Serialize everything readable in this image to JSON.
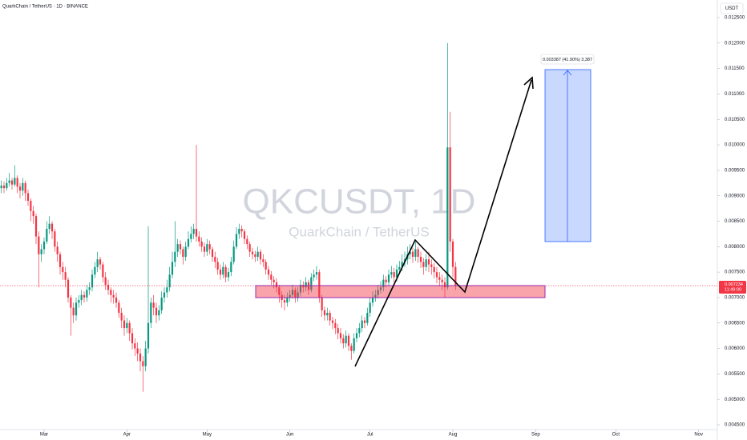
{
  "header": {
    "symbol_title": "QuarkChain / TetherUS · 1D · BINANCE"
  },
  "chart_data": {
    "type": "candlestick",
    "watermark": "QKCUSDT, 1D",
    "watermark_subtitle": "QuarkChain / TetherUS",
    "currency": "USDT",
    "measure_label": "0.003387 (41.90%) 3,387",
    "last_price": 0.007234,
    "countdown": "11:49:00",
    "up_color": "#089981",
    "down_color": "#f23645",
    "grid": false,
    "xlim": [
      -0.5,
      268
    ],
    "xticks": [
      {
        "value": 16,
        "label": "Mar"
      },
      {
        "value": 47,
        "label": "Apr"
      },
      {
        "value": 77,
        "label": "May"
      },
      {
        "value": 108,
        "label": "Jun"
      },
      {
        "value": 138,
        "label": "Jul"
      },
      {
        "value": 169,
        "label": "Aug"
      },
      {
        "value": 200,
        "label": "Sep"
      },
      {
        "value": 230,
        "label": "Oct"
      },
      {
        "value": 261,
        "label": "Nov"
      }
    ],
    "ylim": [
      0.0045,
      0.0125
    ],
    "yticks": [
      {
        "value": 0.0045,
        "label": "0.004500"
      },
      {
        "value": 0.005,
        "label": "0.005000"
      },
      {
        "value": 0.0055,
        "label": "0.005500"
      },
      {
        "value": 0.006,
        "label": "0.006000"
      },
      {
        "value": 0.0065,
        "label": "0.006500"
      },
      {
        "value": 0.007,
        "label": "0.007000"
      },
      {
        "value": 0.0075,
        "label": "0.007500"
      },
      {
        "value": 0.008,
        "label": "0.008000"
      },
      {
        "value": 0.0085,
        "label": "0.008500"
      },
      {
        "value": 0.009,
        "label": "0.009000"
      },
      {
        "value": 0.0095,
        "label": "0.009500"
      },
      {
        "value": 0.01,
        "label": "0.010000"
      },
      {
        "value": 0.0105,
        "label": "0.010500"
      },
      {
        "value": 0.011,
        "label": "0.011000"
      },
      {
        "value": 0.0115,
        "label": "0.011500"
      },
      {
        "value": 0.012,
        "label": "0.012000"
      },
      {
        "value": 0.0125,
        "label": "0.012500"
      }
    ],
    "candles": [
      [
        0.00915,
        0.0093,
        0.00905,
        0.0092
      ],
      [
        0.0092,
        0.00928,
        0.00905,
        0.00915
      ],
      [
        0.00915,
        0.00935,
        0.0091,
        0.00925
      ],
      [
        0.00925,
        0.00945,
        0.00918,
        0.0093
      ],
      [
        0.0093,
        0.00935,
        0.00912,
        0.00922
      ],
      [
        0.00922,
        0.0096,
        0.00918,
        0.00935
      ],
      [
        0.00935,
        0.0094,
        0.00905,
        0.00918
      ],
      [
        0.00918,
        0.00925,
        0.00895,
        0.0091
      ],
      [
        0.0091,
        0.00935,
        0.009,
        0.00925
      ],
      [
        0.00925,
        0.0093,
        0.0089,
        0.00905
      ],
      [
        0.00905,
        0.00912,
        0.0088,
        0.0089
      ],
      [
        0.0089,
        0.00895,
        0.0085,
        0.0087
      ],
      [
        0.0087,
        0.0088,
        0.00845,
        0.0086
      ],
      [
        0.0086,
        0.00865,
        0.00805,
        0.0082
      ],
      [
        0.0082,
        0.0083,
        0.0072,
        0.00785
      ],
      [
        0.00785,
        0.00805,
        0.0077,
        0.00795
      ],
      [
        0.00795,
        0.00818,
        0.00785,
        0.0081
      ],
      [
        0.0081,
        0.0085,
        0.00805,
        0.00835
      ],
      [
        0.00835,
        0.0086,
        0.00825,
        0.00845
      ],
      [
        0.00845,
        0.0085,
        0.00815,
        0.0083
      ],
      [
        0.0083,
        0.00835,
        0.0079,
        0.008
      ],
      [
        0.008,
        0.0081,
        0.0077,
        0.00785
      ],
      [
        0.00785,
        0.0079,
        0.00745,
        0.0076
      ],
      [
        0.0076,
        0.0077,
        0.00735,
        0.0075
      ],
      [
        0.0075,
        0.0076,
        0.0072,
        0.00735
      ],
      [
        0.00735,
        0.0074,
        0.0069,
        0.007
      ],
      [
        0.007,
        0.00705,
        0.00625,
        0.0068
      ],
      [
        0.0068,
        0.0069,
        0.0065,
        0.00665
      ],
      [
        0.00665,
        0.007,
        0.00655,
        0.0069
      ],
      [
        0.0069,
        0.00705,
        0.0068,
        0.00695
      ],
      [
        0.00695,
        0.00715,
        0.00685,
        0.00705
      ],
      [
        0.00705,
        0.00712,
        0.0069,
        0.007
      ],
      [
        0.007,
        0.00725,
        0.00692,
        0.00715
      ],
      [
        0.00715,
        0.0073,
        0.00705,
        0.0072
      ],
      [
        0.0072,
        0.00755,
        0.00712,
        0.00745
      ],
      [
        0.00745,
        0.0077,
        0.00738,
        0.0076
      ],
      [
        0.0076,
        0.0079,
        0.0075,
        0.00775
      ],
      [
        0.00775,
        0.0078,
        0.00755,
        0.00765
      ],
      [
        0.00765,
        0.0077,
        0.0073,
        0.0074
      ],
      [
        0.0074,
        0.0075,
        0.00715,
        0.00725
      ],
      [
        0.00725,
        0.00735,
        0.00705,
        0.00715
      ],
      [
        0.00715,
        0.0072,
        0.0069,
        0.00705
      ],
      [
        0.00705,
        0.00715,
        0.00688,
        0.007
      ],
      [
        0.007,
        0.0071,
        0.0068,
        0.0069
      ],
      [
        0.0069,
        0.00695,
        0.0066,
        0.0067
      ],
      [
        0.0067,
        0.0068,
        0.0064,
        0.00655
      ],
      [
        0.00655,
        0.00665,
        0.00625,
        0.0064
      ],
      [
        0.0064,
        0.0066,
        0.0063,
        0.0065
      ],
      [
        0.0065,
        0.00655,
        0.00615,
        0.0063
      ],
      [
        0.0063,
        0.0064,
        0.00598,
        0.0061
      ],
      [
        0.0061,
        0.0062,
        0.00585,
        0.006
      ],
      [
        0.006,
        0.00612,
        0.00575,
        0.0059
      ],
      [
        0.0059,
        0.006,
        0.00555,
        0.00575
      ],
      [
        0.00575,
        0.00585,
        0.00515,
        0.00565
      ],
      [
        0.00565,
        0.00615,
        0.00555,
        0.006
      ],
      [
        0.006,
        0.0084,
        0.0059,
        0.0065
      ],
      [
        0.0065,
        0.007,
        0.0064,
        0.0069
      ],
      [
        0.0069,
        0.00705,
        0.00665,
        0.0068
      ],
      [
        0.0068,
        0.0069,
        0.0065,
        0.00665
      ],
      [
        0.00665,
        0.00685,
        0.00655,
        0.00675
      ],
      [
        0.00675,
        0.00712,
        0.00668,
        0.007
      ],
      [
        0.007,
        0.0072,
        0.0069,
        0.0071
      ],
      [
        0.0071,
        0.00735,
        0.007,
        0.0072
      ],
      [
        0.0072,
        0.0076,
        0.00712,
        0.00745
      ],
      [
        0.00745,
        0.0079,
        0.00738,
        0.0077
      ],
      [
        0.0077,
        0.0085,
        0.0076,
        0.0079
      ],
      [
        0.0079,
        0.00815,
        0.0078,
        0.00805
      ],
      [
        0.00805,
        0.00812,
        0.00785,
        0.00795
      ],
      [
        0.00795,
        0.008,
        0.00765,
        0.0078
      ],
      [
        0.0078,
        0.0081,
        0.00772,
        0.008
      ],
      [
        0.008,
        0.0083,
        0.00795,
        0.00815
      ],
      [
        0.00815,
        0.0084,
        0.00808,
        0.00825
      ],
      [
        0.00825,
        0.00845,
        0.00815,
        0.00835
      ],
      [
        0.00835,
        0.01,
        0.0081,
        0.0082
      ],
      [
        0.0082,
        0.0083,
        0.008,
        0.0081
      ],
      [
        0.0081,
        0.00818,
        0.0079,
        0.008
      ],
      [
        0.008,
        0.00808,
        0.0078,
        0.0079
      ],
      [
        0.0079,
        0.00815,
        0.00782,
        0.00805
      ],
      [
        0.00805,
        0.00812,
        0.00785,
        0.00795
      ],
      [
        0.00795,
        0.008,
        0.0077,
        0.0078
      ],
      [
        0.0078,
        0.0079,
        0.00758,
        0.0077
      ],
      [
        0.0077,
        0.00778,
        0.00745,
        0.00755
      ],
      [
        0.00755,
        0.00765,
        0.00735,
        0.00745
      ],
      [
        0.00745,
        0.0077,
        0.00738,
        0.0076
      ],
      [
        0.0076,
        0.00765,
        0.0073,
        0.0074
      ],
      [
        0.0074,
        0.00758,
        0.00732,
        0.0075
      ],
      [
        0.0075,
        0.0078,
        0.00742,
        0.0077
      ],
      [
        0.0077,
        0.00812,
        0.00765,
        0.008
      ],
      [
        0.008,
        0.00838,
        0.00795,
        0.00825
      ],
      [
        0.00825,
        0.00845,
        0.00815,
        0.00835
      ],
      [
        0.00835,
        0.00842,
        0.00818,
        0.0083
      ],
      [
        0.0083,
        0.00835,
        0.00805,
        0.00815
      ],
      [
        0.00815,
        0.00822,
        0.00795,
        0.00805
      ],
      [
        0.00805,
        0.0081,
        0.0078,
        0.0079
      ],
      [
        0.0079,
        0.00798,
        0.00775,
        0.00785
      ],
      [
        0.00785,
        0.00792,
        0.0077,
        0.0078
      ],
      [
        0.0078,
        0.008,
        0.00772,
        0.0079
      ],
      [
        0.0079,
        0.00795,
        0.00765,
        0.00775
      ],
      [
        0.00775,
        0.00785,
        0.0076,
        0.0077
      ],
      [
        0.0077,
        0.00775,
        0.00745,
        0.00755
      ],
      [
        0.00755,
        0.00762,
        0.00735,
        0.00745
      ],
      [
        0.00745,
        0.00752,
        0.00725,
        0.00735
      ],
      [
        0.00735,
        0.00742,
        0.00718,
        0.0073
      ],
      [
        0.0073,
        0.00738,
        0.0071,
        0.0072
      ],
      [
        0.0072,
        0.00725,
        0.0069,
        0.00705
      ],
      [
        0.00705,
        0.00712,
        0.0068,
        0.00695
      ],
      [
        0.00695,
        0.00705,
        0.00675,
        0.0069
      ],
      [
        0.0069,
        0.0071,
        0.00682,
        0.007
      ],
      [
        0.007,
        0.00715,
        0.00692,
        0.00705
      ],
      [
        0.00705,
        0.00725,
        0.00698,
        0.00715
      ],
      [
        0.00715,
        0.0072,
        0.0069,
        0.007
      ],
      [
        0.007,
        0.0072,
        0.00692,
        0.0071
      ],
      [
        0.0071,
        0.00735,
        0.00702,
        0.00725
      ],
      [
        0.00725,
        0.00732,
        0.0071,
        0.0072
      ],
      [
        0.0072,
        0.0074,
        0.00712,
        0.0073
      ],
      [
        0.0073,
        0.00735,
        0.00705,
        0.00715
      ],
      [
        0.00715,
        0.00748,
        0.0071,
        0.0074
      ],
      [
        0.0074,
        0.00755,
        0.00732,
        0.00745
      ],
      [
        0.00745,
        0.00762,
        0.00735,
        0.0075
      ],
      [
        0.0075,
        0.00755,
        0.0069,
        0.007
      ],
      [
        0.007,
        0.00705,
        0.00662,
        0.00675
      ],
      [
        0.00675,
        0.00682,
        0.00655,
        0.00665
      ],
      [
        0.00665,
        0.0068,
        0.00655,
        0.0067
      ],
      [
        0.0067,
        0.00675,
        0.00645,
        0.00655
      ],
      [
        0.00655,
        0.00662,
        0.00638,
        0.0065
      ],
      [
        0.0065,
        0.00658,
        0.00628,
        0.0064
      ],
      [
        0.0064,
        0.00648,
        0.00618,
        0.0063
      ],
      [
        0.0063,
        0.0064,
        0.0061,
        0.0062
      ],
      [
        0.0062,
        0.00628,
        0.006,
        0.0061
      ],
      [
        0.0061,
        0.00635,
        0.00602,
        0.00625
      ],
      [
        0.00625,
        0.0063,
        0.00595,
        0.00605
      ],
      [
        0.00605,
        0.0061,
        0.00578,
        0.00595
      ],
      [
        0.00595,
        0.0063,
        0.0059,
        0.0062
      ],
      [
        0.0062,
        0.0064,
        0.00612,
        0.0063
      ],
      [
        0.0063,
        0.0065,
        0.00622,
        0.0064
      ],
      [
        0.0064,
        0.00665,
        0.00632,
        0.00655
      ],
      [
        0.00655,
        0.00662,
        0.0064,
        0.0065
      ],
      [
        0.0065,
        0.0068,
        0.00645,
        0.0067
      ],
      [
        0.0067,
        0.007,
        0.00662,
        0.0069
      ],
      [
        0.0069,
        0.00712,
        0.00682,
        0.007
      ],
      [
        0.007,
        0.00715,
        0.00692,
        0.00705
      ],
      [
        0.00705,
        0.00725,
        0.00698,
        0.00715
      ],
      [
        0.00715,
        0.00732,
        0.00708,
        0.0072
      ],
      [
        0.0072,
        0.00745,
        0.00712,
        0.00735
      ],
      [
        0.00735,
        0.00742,
        0.0072,
        0.0073
      ],
      [
        0.0073,
        0.00755,
        0.00722,
        0.00745
      ],
      [
        0.00745,
        0.00762,
        0.00738,
        0.0075
      ],
      [
        0.0075,
        0.00758,
        0.0073,
        0.0074
      ],
      [
        0.0074,
        0.00765,
        0.00732,
        0.00755
      ],
      [
        0.00755,
        0.00772,
        0.00745,
        0.0076
      ],
      [
        0.0076,
        0.00785,
        0.00752,
        0.0077
      ],
      [
        0.0077,
        0.0079,
        0.0076,
        0.00775
      ],
      [
        0.00775,
        0.008,
        0.00765,
        0.00785
      ],
      [
        0.00785,
        0.00805,
        0.00775,
        0.0079
      ],
      [
        0.0079,
        0.00798,
        0.00768,
        0.0078
      ],
      [
        0.0078,
        0.0081,
        0.00772,
        0.00795
      ],
      [
        0.00795,
        0.008,
        0.00768,
        0.0078
      ],
      [
        0.0078,
        0.0079,
        0.00758,
        0.0077
      ],
      [
        0.0077,
        0.00778,
        0.00745,
        0.0076
      ],
      [
        0.0076,
        0.00785,
        0.00752,
        0.00775
      ],
      [
        0.00775,
        0.0079,
        0.0075,
        0.00765
      ],
      [
        0.00765,
        0.00775,
        0.00745,
        0.0076
      ],
      [
        0.0076,
        0.00768,
        0.00738,
        0.0075
      ],
      [
        0.0075,
        0.0076,
        0.00728,
        0.0074
      ],
      [
        0.0074,
        0.0075,
        0.00722,
        0.00735
      ],
      [
        0.00735,
        0.00745,
        0.00715,
        0.0073
      ],
      [
        0.0073,
        0.0074,
        0.007,
        0.0072
      ],
      [
        0.0072,
        0.012,
        0.00715,
        0.00995
      ],
      [
        0.00995,
        0.01065,
        0.0079,
        0.0081
      ],
      [
        0.0081,
        0.00815,
        0.0074,
        0.0076
      ],
      [
        0.0076,
        0.0077,
        0.00715,
        0.007234
      ]
    ]
  }
}
